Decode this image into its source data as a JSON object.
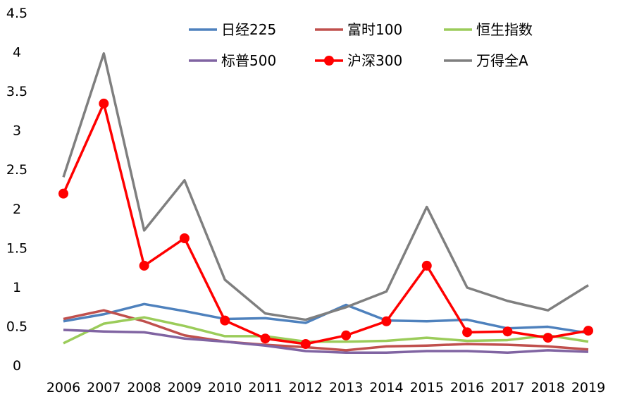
{
  "chart_data": {
    "type": "line",
    "title": "",
    "xlabel": "",
    "ylabel": "",
    "ylim": [
      0,
      4.5
    ],
    "yticks": [
      0,
      0.5,
      1,
      1.5,
      2,
      2.5,
      3,
      3.5,
      4,
      4.5
    ],
    "ytick_labels": [
      "0",
      "0.5",
      "1",
      "1.5",
      "2",
      "2.5",
      "3",
      "3.5",
      "4",
      "4.5"
    ],
    "grid": false,
    "legend_position": "top-right",
    "categories": [
      "2006",
      "2007",
      "2008",
      "2009",
      "2010",
      "2011",
      "2012",
      "2013",
      "2014",
      "2015",
      "2016",
      "2017",
      "2018",
      "2019"
    ],
    "series": [
      {
        "name": "日经225",
        "color": "#4e81bd",
        "markers": false,
        "values": [
          0.56,
          0.65,
          0.78,
          0.69,
          0.59,
          0.6,
          0.54,
          0.77,
          0.57,
          0.56,
          0.58,
          0.47,
          0.49,
          0.41
        ]
      },
      {
        "name": "富时100",
        "color": "#c0504d",
        "markers": false,
        "values": [
          0.59,
          0.7,
          0.56,
          0.38,
          0.3,
          0.26,
          0.23,
          0.19,
          0.24,
          0.25,
          0.27,
          0.26,
          0.24,
          0.2
        ]
      },
      {
        "name": "恒生指数",
        "color": "#9bcc5a",
        "markers": false,
        "values": [
          0.28,
          0.53,
          0.61,
          0.5,
          0.37,
          0.37,
          0.3,
          0.3,
          0.31,
          0.35,
          0.31,
          0.32,
          0.38,
          0.3
        ]
      },
      {
        "name": "标普500",
        "color": "#8064a2",
        "markers": false,
        "values": [
          0.45,
          0.43,
          0.42,
          0.34,
          0.3,
          0.25,
          0.18,
          0.16,
          0.16,
          0.18,
          0.18,
          0.16,
          0.19,
          0.17
        ]
      },
      {
        "name": "沪深300",
        "color": "#ff0000",
        "markers": true,
        "values": [
          2.19,
          3.34,
          1.27,
          1.62,
          0.57,
          0.34,
          0.27,
          0.38,
          0.56,
          1.27,
          0.42,
          0.43,
          0.35,
          0.44
        ]
      },
      {
        "name": "万得全A",
        "color": "#7f7f7f",
        "markers": false,
        "values": [
          2.4,
          3.98,
          1.72,
          2.36,
          1.09,
          0.66,
          0.58,
          0.74,
          0.94,
          2.02,
          0.99,
          0.82,
          0.7,
          1.02
        ]
      }
    ]
  }
}
